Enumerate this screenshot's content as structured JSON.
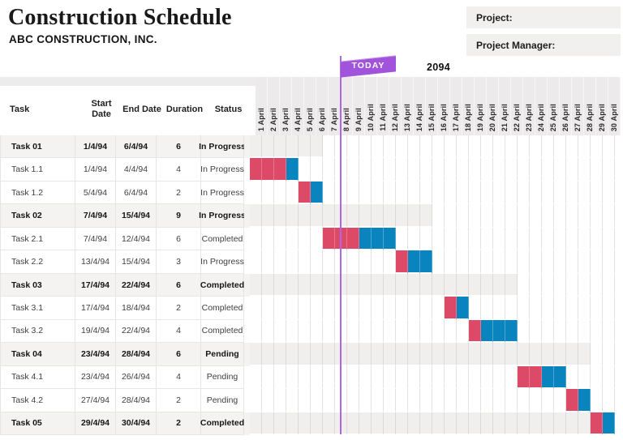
{
  "header": {
    "title": "Construction Schedule",
    "subtitle": "ABC CONSTRUCTION, INC.",
    "project_label": "Project:",
    "project_manager_label": "Project Manager:"
  },
  "today": {
    "label": "TODAY",
    "year_label": "2094"
  },
  "colors": {
    "bar_pink": "#dc4a68",
    "bar_blue": "#0a84bf",
    "accent_purple": "#a153dc",
    "today_line": "#ae66e2",
    "summary_row_bg": "#f4f3f1",
    "summary_span_bg": "#f1efed",
    "date_header_bg": "#eceaeb"
  },
  "table_columns": [
    "Task",
    "Start Date",
    "End Date",
    "Duration",
    "Status"
  ],
  "chart_data": {
    "type": "table",
    "subtype": "gantt",
    "title": "Construction Schedule",
    "timeline": {
      "month": "April",
      "day_labels": [
        "1 April",
        "2 April",
        "3 April",
        "4 April",
        "5 April",
        "6 April",
        "7 April",
        "8 April",
        "9 April",
        "10 April",
        "11 April",
        "12 April",
        "13 April",
        "14 April",
        "15 April",
        "16 April",
        "17 April",
        "18 April",
        "19 April",
        "20 April",
        "21 April",
        "22 April",
        "23 April",
        "24 April",
        "25 April",
        "26 April",
        "27 April",
        "28 April",
        "29 April",
        "30 April"
      ],
      "today_marker_between": [
        "7 April",
        "8 April"
      ]
    },
    "tasks": [
      {
        "task": "Task 01",
        "start": "1/4/94",
        "end": "6/4/94",
        "duration": "6",
        "status": "In Progress",
        "summary": true,
        "span": [
          1,
          6
        ],
        "segments": []
      },
      {
        "task": "Task 1.1",
        "start": "1/4/94",
        "end": "4/4/94",
        "duration": "4",
        "status": "In Progress",
        "summary": false,
        "segments": [
          {
            "color": "pink",
            "from": 1,
            "to": 3
          },
          {
            "color": "blue",
            "from": 4,
            "to": 4
          }
        ]
      },
      {
        "task": "Task 1.2",
        "start": "5/4/94",
        "end": "6/4/94",
        "duration": "2",
        "status": "In Progress",
        "summary": false,
        "segments": [
          {
            "color": "pink",
            "from": 5,
            "to": 5
          },
          {
            "color": "blue",
            "from": 6,
            "to": 6
          }
        ]
      },
      {
        "task": "Task 02",
        "start": "7/4/94",
        "end": "15/4/94",
        "duration": "9",
        "status": "In Progress",
        "summary": true,
        "span": [
          1,
          15
        ],
        "segments": []
      },
      {
        "task": "Task 2.1",
        "start": "7/4/94",
        "end": "12/4/94",
        "duration": "6",
        "status": "Completed",
        "summary": false,
        "segments": [
          {
            "color": "pink",
            "from": 7,
            "to": 9
          },
          {
            "color": "blue",
            "from": 10,
            "to": 12
          }
        ]
      },
      {
        "task": "Task 2.2",
        "start": "13/4/94",
        "end": "15/4/94",
        "duration": "3",
        "status": "In Progress",
        "summary": false,
        "segments": [
          {
            "color": "pink",
            "from": 13,
            "to": 13
          },
          {
            "color": "blue",
            "from": 14,
            "to": 15
          }
        ]
      },
      {
        "task": "Task 03",
        "start": "17/4/94",
        "end": "22/4/94",
        "duration": "6",
        "status": "Completed",
        "summary": true,
        "span": [
          1,
          22
        ],
        "segments": []
      },
      {
        "task": "Task 3.1",
        "start": "17/4/94",
        "end": "18/4/94",
        "duration": "2",
        "status": "Completed",
        "summary": false,
        "segments": [
          {
            "color": "pink",
            "from": 17,
            "to": 17
          },
          {
            "color": "blue",
            "from": 18,
            "to": 18
          }
        ]
      },
      {
        "task": "Task 3.2",
        "start": "19/4/94",
        "end": "22/4/94",
        "duration": "4",
        "status": "Completed",
        "summary": false,
        "segments": [
          {
            "color": "pink",
            "from": 19,
            "to": 19
          },
          {
            "color": "blue",
            "from": 20,
            "to": 22
          }
        ]
      },
      {
        "task": "Task 04",
        "start": "23/4/94",
        "end": "28/4/94",
        "duration": "6",
        "status": "Pending",
        "summary": true,
        "span": [
          1,
          28
        ],
        "segments": []
      },
      {
        "task": "Task 4.1",
        "start": "23/4/94",
        "end": "26/4/94",
        "duration": "4",
        "status": "Pending",
        "summary": false,
        "segments": [
          {
            "color": "pink",
            "from": 23,
            "to": 24
          },
          {
            "color": "blue",
            "from": 25,
            "to": 26
          }
        ]
      },
      {
        "task": "Task 4.2",
        "start": "27/4/94",
        "end": "28/4/94",
        "duration": "2",
        "status": "Pending",
        "summary": false,
        "segments": [
          {
            "color": "pink",
            "from": 27,
            "to": 27
          },
          {
            "color": "blue",
            "from": 28,
            "to": 28
          }
        ]
      },
      {
        "task": "Task 05",
        "start": "29/4/94",
        "end": "30/4/94",
        "duration": "2",
        "status": "Completed",
        "summary": true,
        "span": [
          1,
          30
        ],
        "segments": [
          {
            "color": "pink",
            "from": 29,
            "to": 29
          },
          {
            "color": "blue",
            "from": 30,
            "to": 30
          }
        ]
      }
    ]
  }
}
